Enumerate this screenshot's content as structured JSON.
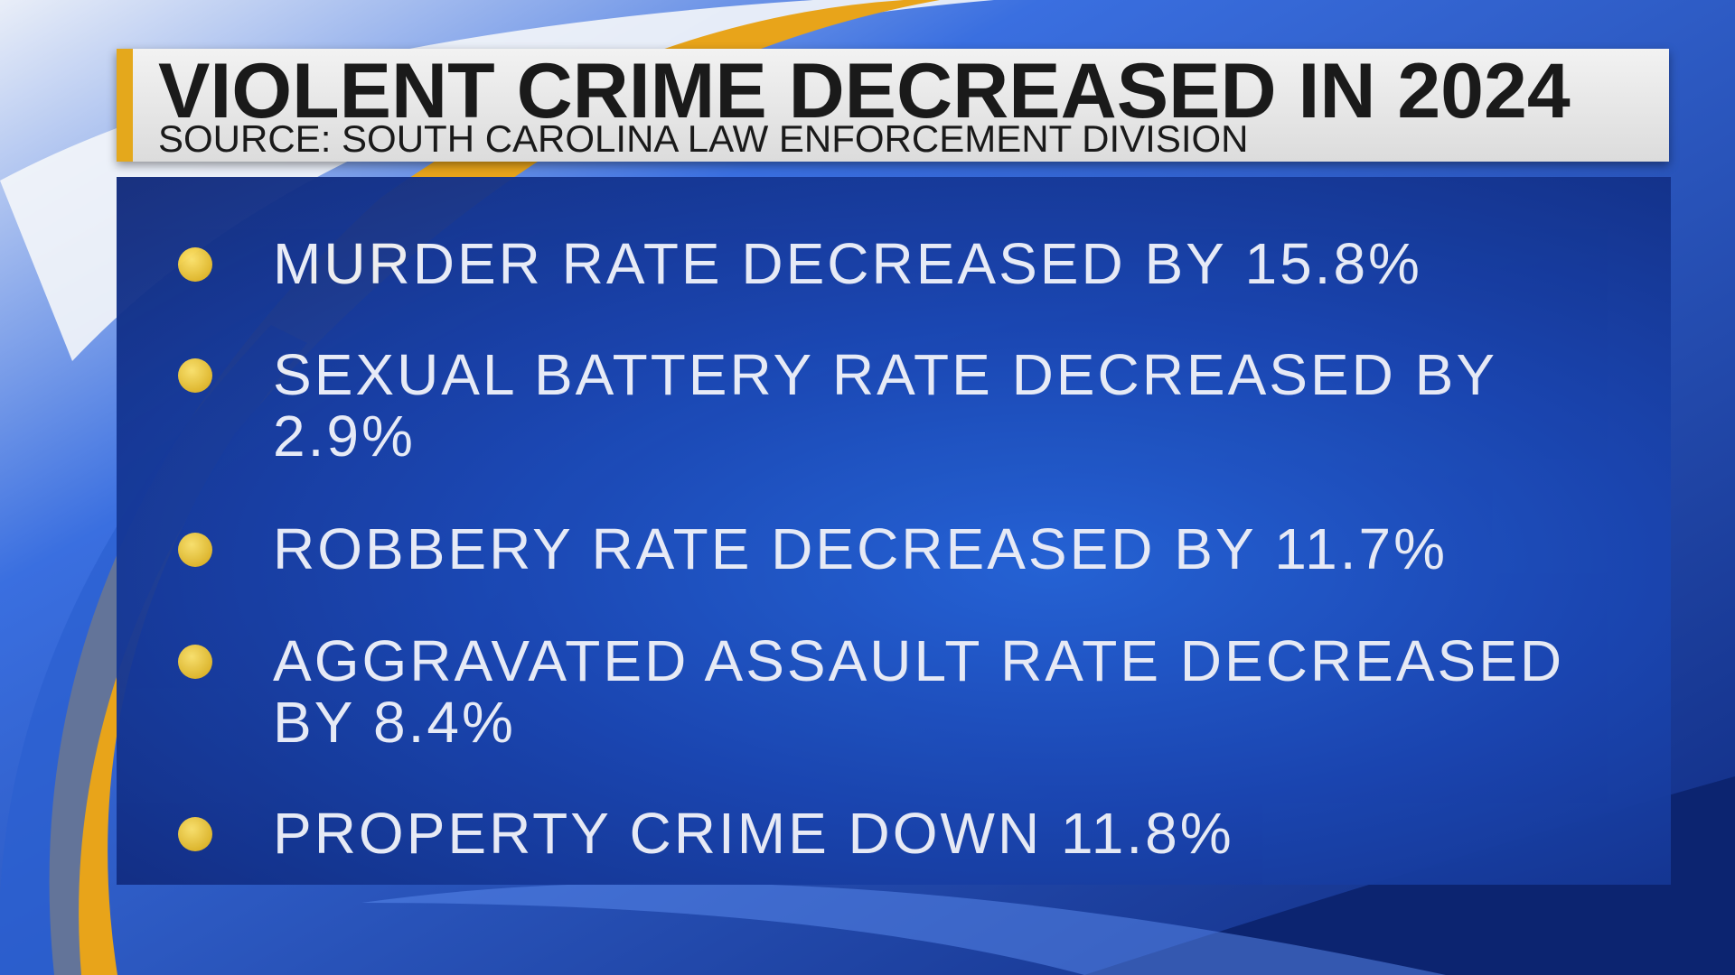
{
  "header": {
    "title": "VIOLENT CRIME DECREASED IN 2024",
    "source": "SOURCE: SOUTH CAROLINA LAW ENFORCEMENT DIVISION"
  },
  "bullets": [
    "MURDER RATE DECREASED BY 15.8%",
    "SEXUAL BATTERY RATE DECREASED BY 2.9%",
    "ROBBERY RATE DECREASED BY 11.7%",
    "AGGRAVATED ASSAULT RATE DECREASED BY 8.4%",
    "PROPERTY CRIME DOWN 11.8%"
  ]
}
